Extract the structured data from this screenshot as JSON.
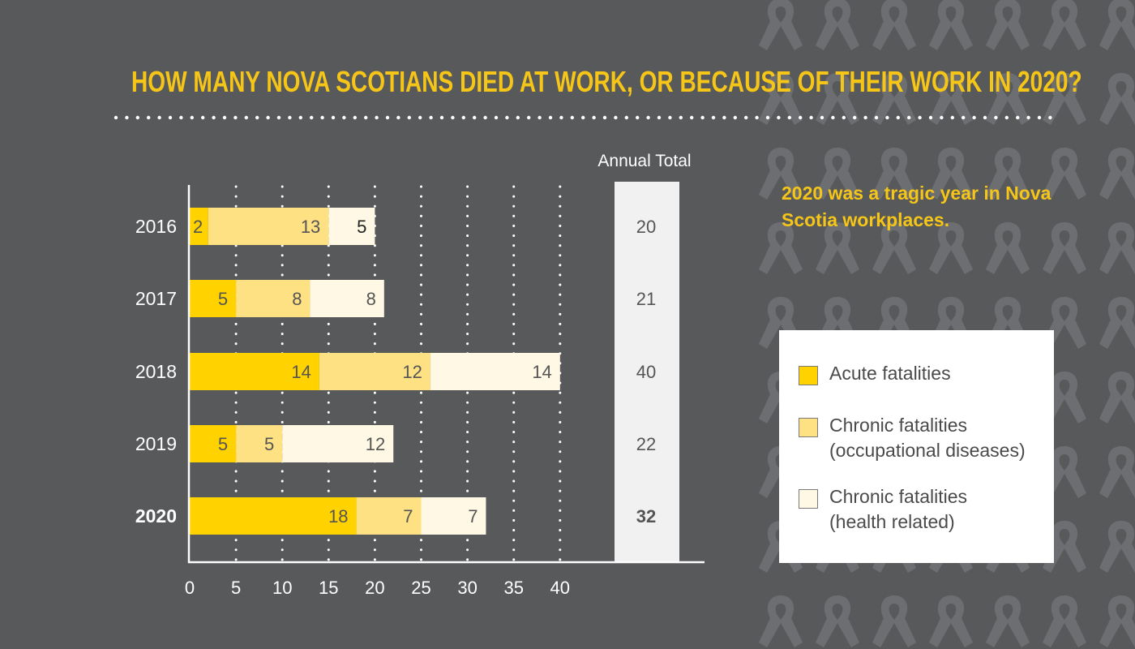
{
  "title": "HOW MANY NOVA SCOTIANS DIED AT WORK, OR BECAUSE OF THEIR WORK IN 2020?",
  "callout": "2020 was a tragic year in Nova Scotia workplaces.",
  "colors": {
    "background": "#58595b",
    "accent": "#f5c518",
    "acute": "#ffd200",
    "chronic_occupational": "#fde182",
    "chronic_health": "#fef8e4",
    "total_column": "#f1f1f1",
    "ribbon": "#6d6e71"
  },
  "legend": [
    {
      "line1": "Acute fatalities",
      "line2": "",
      "color": "#ffd200"
    },
    {
      "line1": "Chronic fatalities",
      "line2": "(occupational diseases)",
      "color": "#fde182"
    },
    {
      "line1": "Chronic fatalities",
      "line2": "(health related)",
      "color": "#fef8e4"
    }
  ],
  "chart_data": {
    "type": "bar",
    "orientation": "horizontal",
    "stacked": true,
    "categories": [
      "2016",
      "2017",
      "2018",
      "2019",
      "2020"
    ],
    "highlight_category": "2020",
    "series": [
      {
        "name": "Acute fatalities",
        "values": [
          2,
          5,
          14,
          5,
          18
        ]
      },
      {
        "name": "Chronic fatalities (occupational diseases)",
        "values": [
          13,
          8,
          12,
          5,
          7
        ]
      },
      {
        "name": "Chronic fatalities (health related)",
        "values": [
          5,
          8,
          14,
          12,
          7
        ]
      }
    ],
    "totals_label": "Annual Total",
    "totals": [
      20,
      21,
      40,
      22,
      32
    ],
    "xlim": [
      0,
      40
    ],
    "xticks": [
      0,
      5,
      10,
      15,
      20,
      25,
      30,
      35,
      40
    ],
    "grid": "vertical dotted",
    "legend_position": "right"
  }
}
